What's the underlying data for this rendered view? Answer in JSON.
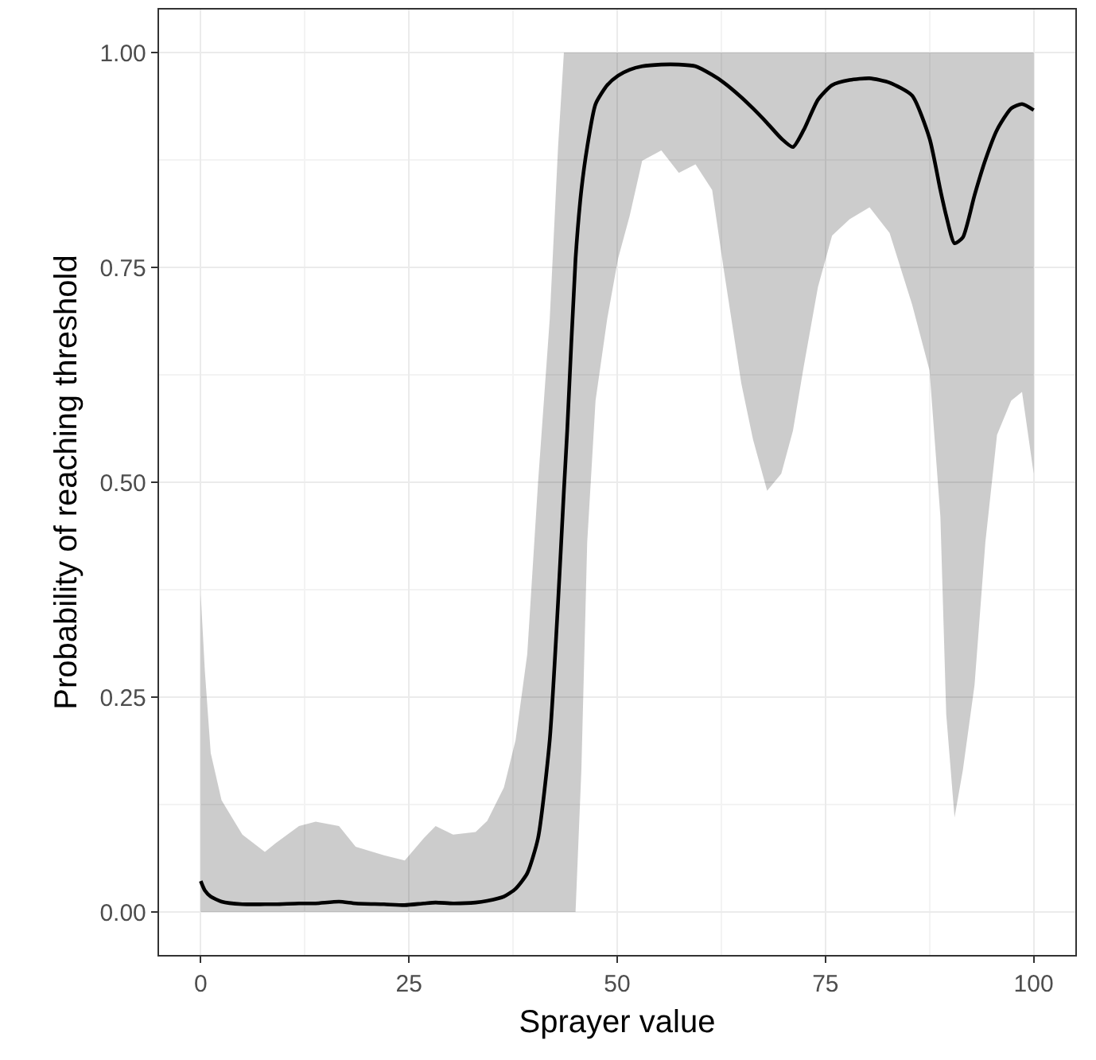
{
  "chart_data": {
    "type": "line",
    "xlabel": "Sprayer value",
    "ylabel": "Probability of reaching threshold",
    "xlim": [
      -5,
      105
    ],
    "ylim": [
      -0.05,
      1.05
    ],
    "xticks": [
      0,
      25,
      50,
      75,
      100
    ],
    "yticks": [
      {
        "value": 0,
        "label": "0.00"
      },
      {
        "value": 0.25,
        "label": "0.25"
      },
      {
        "value": 0.5,
        "label": "0.50"
      },
      {
        "value": 0.75,
        "label": "0.75"
      },
      {
        "value": 1,
        "label": "1.00"
      }
    ],
    "grid": true,
    "marker": "none",
    "line_style": "solid",
    "series": [
      {
        "color": "#000000",
        "x": [
          0,
          0.5,
          1.2,
          2.5,
          5,
          7.7,
          9,
          11.8,
          13.8,
          16.6,
          18.6,
          22,
          24.5,
          26.8,
          28.2,
          30.3,
          33,
          34.4,
          36.4,
          37.8,
          39.2,
          40.5,
          41.9,
          42.9,
          43.6,
          44,
          45,
          45.7,
          46.4,
          47.4,
          48.8,
          50.1,
          51.5,
          53,
          55.3,
          57.4,
          59.4,
          61.4,
          62.8,
          64.9,
          66.3,
          68,
          69.7,
          71.1,
          72.4,
          74.1,
          75.8,
          77.9,
          80.3,
          82.7,
          85.4,
          87.5,
          88.8,
          89.5,
          90.5,
          91.5,
          92.9,
          94.2,
          95.6,
          97.3,
          98.6,
          100
        ],
        "values": [
          0.036,
          0.025,
          0.018,
          0.012,
          0.009,
          0.009,
          0.009,
          0.01,
          0.01,
          0.012,
          0.01,
          0.009,
          0.008,
          0.01,
          0.011,
          0.01,
          0.011,
          0.013,
          0.018,
          0.027,
          0.045,
          0.086,
          0.2,
          0.36,
          0.49,
          0.56,
          0.76,
          0.84,
          0.89,
          0.94,
          0.962,
          0.973,
          0.98,
          0.984,
          0.986,
          0.986,
          0.984,
          0.974,
          0.965,
          0.948,
          0.935,
          0.918,
          0.9,
          0.89,
          0.91,
          0.945,
          0.962,
          0.968,
          0.97,
          0.965,
          0.95,
          0.9,
          0.84,
          0.81,
          0.778,
          0.785,
          0.834,
          0.875,
          0.91,
          0.935,
          0.94,
          0.933
        ],
        "lower": [
          0,
          0,
          0,
          0,
          0,
          0,
          0,
          0,
          0,
          0,
          0,
          0,
          0,
          0,
          0,
          0,
          0,
          0,
          0,
          0,
          0,
          0,
          0,
          0,
          0,
          0,
          0,
          0.165,
          0.43,
          0.595,
          0.69,
          0.76,
          0.81,
          0.874,
          0.886,
          0.86,
          0.87,
          0.84,
          0.747,
          0.615,
          0.55,
          0.49,
          0.51,
          0.56,
          0.635,
          0.727,
          0.787,
          0.806,
          0.82,
          0.79,
          0.707,
          0.63,
          0.46,
          0.23,
          0.11,
          0.165,
          0.264,
          0.43,
          0.555,
          0.595,
          0.605,
          0.51
        ],
        "upper": [
          0.37,
          0.28,
          0.185,
          0.13,
          0.09,
          0.07,
          0.08,
          0.1,
          0.105,
          0.1,
          0.076,
          0.066,
          0.06,
          0.086,
          0.1,
          0.09,
          0.093,
          0.106,
          0.145,
          0.2,
          0.3,
          0.5,
          0.69,
          0.89,
          1,
          1,
          1,
          1,
          1,
          1,
          1,
          1,
          1,
          1,
          1,
          1,
          1,
          1,
          1,
          1,
          1,
          1,
          1,
          1,
          1,
          1,
          1,
          1,
          1,
          1,
          1,
          1,
          1,
          1,
          1,
          1,
          1,
          1,
          1,
          1,
          1,
          1
        ]
      }
    ]
  }
}
